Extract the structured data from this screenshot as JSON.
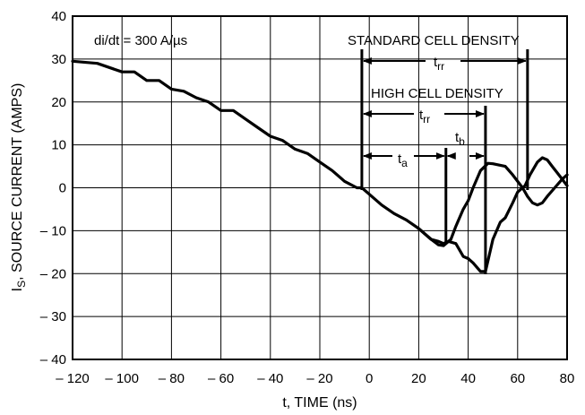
{
  "chart_data": {
    "type": "line",
    "xlabel": "t, TIME (ns)",
    "ylabel_main": "I",
    "ylabel_sub": "S",
    "ylabel_rest": ", SOURCE CURRENT (AMPS)",
    "xlim": [
      -120,
      80
    ],
    "ylim": [
      -40,
      40
    ],
    "grid": true,
    "x_ticks": [
      -120,
      -100,
      -80,
      -60,
      -40,
      -20,
      0,
      20,
      40,
      60,
      80
    ],
    "x_tick_labels": [
      "– 120",
      "– 100",
      "– 80",
      "– 60",
      "– 40",
      "– 20",
      "0",
      "20",
      "40",
      "60",
      "80"
    ],
    "y_ticks": [
      40,
      30,
      20,
      10,
      0,
      -10,
      -20,
      -30,
      -40
    ],
    "y_tick_labels": [
      "40",
      "30",
      "20",
      "10",
      "0",
      "– 10",
      "– 20",
      "– 30",
      "– 40"
    ],
    "series": [
      {
        "x": [
          -120,
          -110,
          -100,
          -95,
          -90,
          -85,
          -80,
          -75,
          -70,
          -65,
          -60,
          -55,
          -50,
          -45,
          -40,
          -35,
          -30,
          -25,
          -20,
          -15,
          -10,
          -5,
          -3,
          0,
          5,
          10,
          15,
          20,
          25,
          28,
          30,
          33,
          35,
          38,
          40,
          42,
          45,
          48,
          50,
          55,
          58,
          62,
          64,
          66,
          68,
          70,
          72,
          75,
          78,
          80
        ],
        "y": [
          29.5,
          29,
          27,
          27,
          25,
          25,
          23,
          22.5,
          21,
          20,
          18,
          18,
          16,
          14,
          12,
          11,
          9,
          8,
          6,
          4,
          1.5,
          0,
          0,
          -1.5,
          -4,
          -6,
          -7.5,
          -9.5,
          -12,
          -13.3,
          -13.5,
          -12,
          -9,
          -5,
          -3,
          0,
          4,
          5.7,
          5.6,
          5,
          3,
          0,
          -2,
          -3.5,
          -4,
          -3.5,
          -2,
          0,
          2,
          3
        ]
      },
      {
        "x": [
          20,
          25,
          28,
          30,
          32,
          35,
          38,
          40,
          42,
          45,
          47,
          48,
          50,
          53,
          55,
          58,
          60,
          63,
          65,
          68,
          70,
          72,
          74,
          76,
          78,
          80
        ],
        "y": [
          -9.5,
          -12,
          -12.5,
          -13,
          -12.5,
          -13,
          -16,
          -16.5,
          -17.5,
          -19.5,
          -19.5,
          -17,
          -12,
          -8,
          -7,
          -3.5,
          -1,
          0.5,
          3,
          6,
          7,
          6.5,
          5,
          3.5,
          2,
          0.5
        ]
      }
    ],
    "annotations": {
      "didt": "di/dt = 300 A/µs",
      "standard": "STANDARD CELL DENSITY",
      "high": "HIGH CELL DENSITY",
      "trr_main": "t",
      "trr_sub": "rr",
      "ta_main": "t",
      "ta_sub": "a",
      "tb_main": "t",
      "tb_sub": "b"
    }
  }
}
